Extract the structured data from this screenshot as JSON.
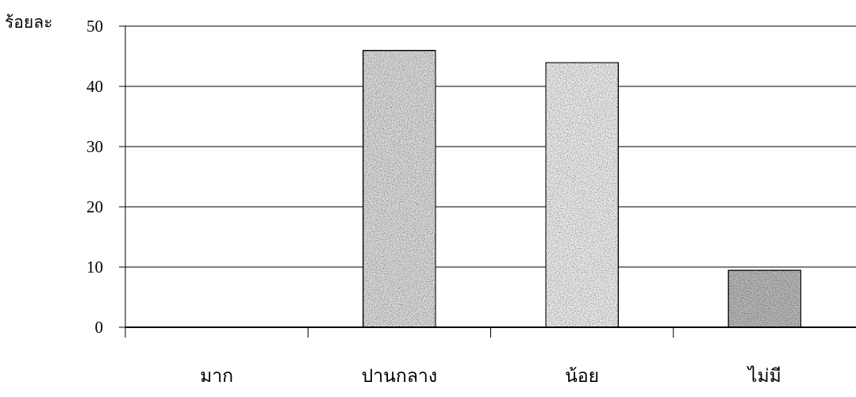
{
  "chart_data": {
    "type": "bar",
    "title": "",
    "xlabel": "",
    "ylabel": "ร้อยละ",
    "categories": [
      "มาก",
      "ปานกลาง",
      "น้อย",
      "ไม่มี"
    ],
    "values": [
      0,
      46,
      44,
      9.5
    ],
    "ylim": [
      0,
      50
    ],
    "yticks": [
      0,
      10,
      20,
      30,
      40,
      50
    ],
    "grid": true,
    "legend": "none",
    "bar_fills": [
      "#ffffff",
      "#dcdcdc",
      "#ededed",
      "#b9b9b9"
    ],
    "bar_stroke": "#000000"
  }
}
